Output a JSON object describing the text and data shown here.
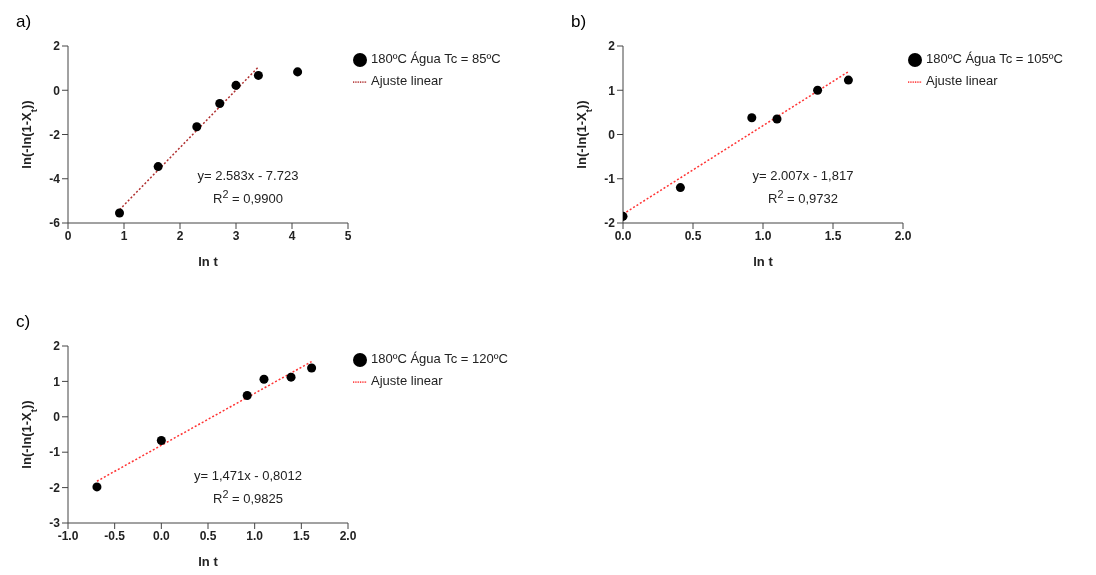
{
  "chart_data": [
    {
      "type": "scatter",
      "title": "a)",
      "xlabel": "ln t",
      "ylabel": "ln(-ln(1-X$_{t}$))",
      "xlim": [
        0,
        5
      ],
      "ylim": [
        -6,
        2
      ],
      "xticks": [
        0,
        1,
        2,
        3,
        4,
        5
      ],
      "yticks": [
        -6,
        -4,
        -2,
        0,
        2
      ],
      "legend": "right",
      "marker": "circle",
      "annotations": [
        "y= 2.583x - 7.723",
        "R$^{2}$ = 0,9900"
      ],
      "series": [
        {
          "name": "180ºC Água Tc = 85ºC",
          "color": "#000000",
          "x": [
            0.92,
            1.61,
            2.3,
            2.71,
            3.0,
            3.4,
            4.1
          ],
          "values": [
            -5.55,
            -3.45,
            -1.65,
            -0.6,
            0.22,
            0.67,
            0.83
          ]
        },
        {
          "name": "Ajuste linear",
          "type": "line",
          "color": "#b03030",
          "marker": "none",
          "line_style": "dotted",
          "x": [
            0.92,
            3.4
          ],
          "values": [
            -5.4,
            1.05
          ]
        }
      ]
    },
    {
      "type": "scatter",
      "title": "b)",
      "xlabel": "ln t",
      "ylabel": "ln(-ln(1-X$_{t}$))",
      "xlim": [
        0,
        2
      ],
      "ylim": [
        -2,
        2
      ],
      "xticks": [
        {
          "value": 0,
          "label": "0.0"
        },
        0.5,
        {
          "value": 1,
          "label": "1.0"
        },
        1.5,
        {
          "value": 2,
          "label": "2.0"
        }
      ],
      "yticks": [
        -2,
        -1,
        0,
        1,
        2
      ],
      "legend": "right",
      "marker": "circle",
      "annotations": [
        "y= 2.007x - 1,817",
        "R$^{2}$ = 0,9732"
      ],
      "series": [
        {
          "name": "180ºC Água Tc = 105ºC",
          "color": "#000000",
          "x": [
            0,
            0.41,
            0.92,
            1.1,
            1.39,
            1.61
          ],
          "values": [
            -1.85,
            -1.2,
            0.38,
            0.35,
            1.0,
            1.23
          ]
        },
        {
          "name": "Ajuste linear",
          "type": "line",
          "color": "#ff3333",
          "marker": "none",
          "line_style": "dotted",
          "x": [
            0,
            1.61
          ],
          "values": [
            -1.8,
            1.42
          ]
        }
      ]
    },
    {
      "type": "scatter",
      "title": "c)",
      "xlabel": "ln t",
      "ylabel": "ln(-ln(1-X$_{t}$))",
      "xlim": [
        -1,
        2
      ],
      "ylim": [
        -3,
        2
      ],
      "xticks": [
        {
          "value": -1,
          "label": "-1.0"
        },
        -0.5,
        {
          "value": 0,
          "label": "0.0"
        },
        0.5,
        {
          "value": 1,
          "label": "1.0"
        },
        1.5,
        {
          "value": 2,
          "label": "2.0"
        }
      ],
      "yticks": [
        -3,
        -2,
        -1,
        0,
        1,
        2
      ],
      "legend": "right",
      "marker": "circle",
      "annotations": [
        "y= 1,471x - 0,8012",
        "R$^{2}$ = 0,9825"
      ],
      "series": [
        {
          "name": "180ºC Água Tc = 120ºC",
          "color": "#000000",
          "x": [
            -0.69,
            0,
            0.92,
            1.1,
            1.39,
            1.61
          ],
          "values": [
            -1.98,
            -0.67,
            0.6,
            1.06,
            1.12,
            1.38
          ]
        },
        {
          "name": "Ajuste linear",
          "type": "line",
          "color": "#ff3333",
          "marker": "none",
          "line_style": "dotted",
          "x": [
            -0.69,
            1.61
          ],
          "values": [
            -1.82,
            1.56
          ]
        }
      ]
    }
  ]
}
